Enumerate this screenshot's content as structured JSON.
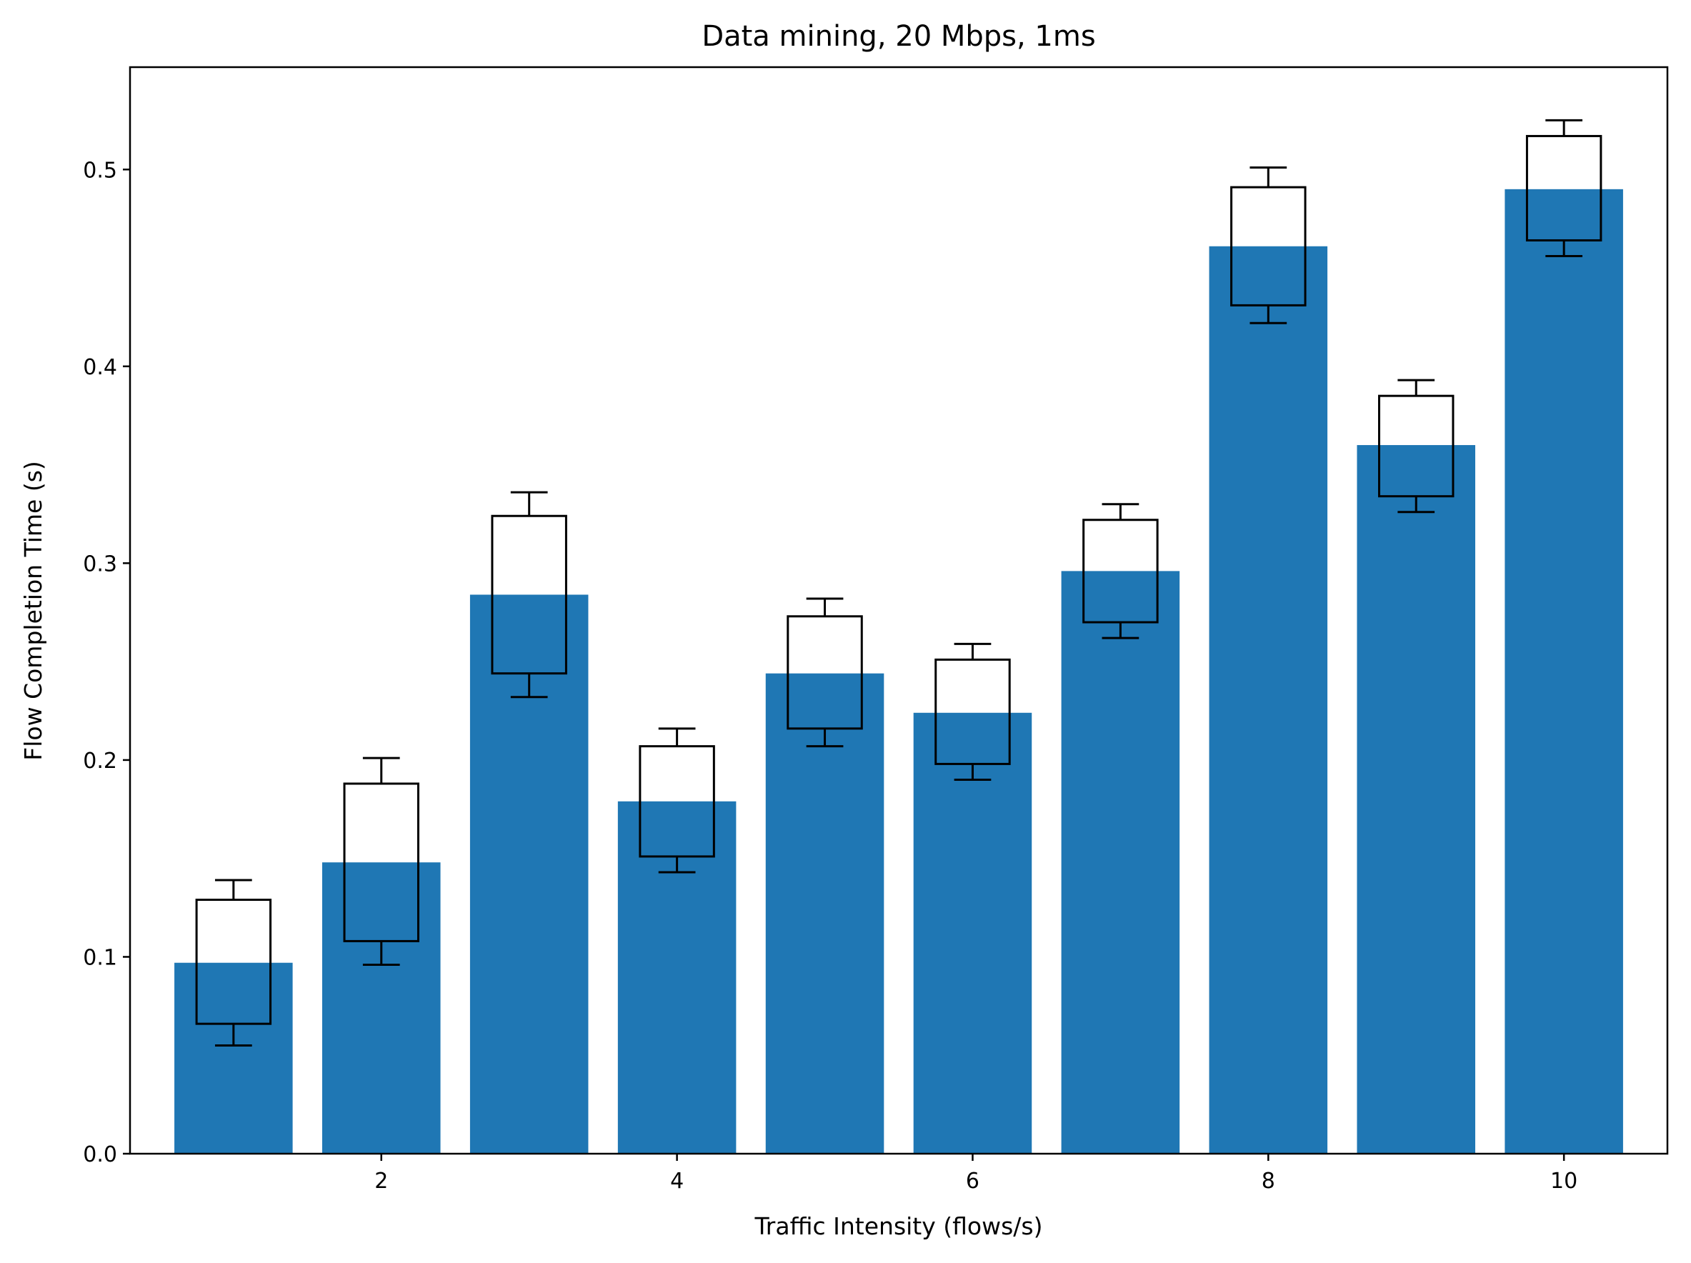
{
  "chart_data": {
    "type": "bar",
    "title": "Data mining, 20 Mbps, 1ms",
    "xlabel": "Traffic Intensity (flows/s)",
    "ylabel": "Flow Completion Time (s)",
    "x": [
      1,
      2,
      3,
      4,
      5,
      6,
      7,
      8,
      9,
      10
    ],
    "values": [
      0.097,
      0.148,
      0.284,
      0.179,
      0.244,
      0.224,
      0.296,
      0.461,
      0.36,
      0.49
    ],
    "box": {
      "q1": [
        0.066,
        0.108,
        0.244,
        0.151,
        0.216,
        0.198,
        0.27,
        0.431,
        0.334,
        0.464
      ],
      "q3": [
        0.129,
        0.188,
        0.324,
        0.207,
        0.273,
        0.251,
        0.322,
        0.491,
        0.385,
        0.517
      ],
      "whisker_low": [
        0.055,
        0.096,
        0.232,
        0.143,
        0.207,
        0.19,
        0.262,
        0.422,
        0.326,
        0.456
      ],
      "whisker_high": [
        0.139,
        0.201,
        0.336,
        0.216,
        0.282,
        0.259,
        0.33,
        0.501,
        0.393,
        0.525
      ]
    },
    "xticks": [
      "2",
      "4",
      "6",
      "8",
      "10"
    ],
    "xtick_values": [
      2,
      4,
      6,
      8,
      10
    ],
    "yticks": [
      "0.0",
      "0.1",
      "0.2",
      "0.3",
      "0.4",
      "0.5"
    ],
    "ytick_values": [
      0.0,
      0.1,
      0.2,
      0.3,
      0.4,
      0.5
    ],
    "xlim": [
      0.3,
      10.7
    ],
    "ylim": [
      0,
      0.552
    ],
    "grid": false,
    "legend": "none",
    "colors": {
      "bar": "#1f77b4",
      "box": "#000000"
    }
  }
}
